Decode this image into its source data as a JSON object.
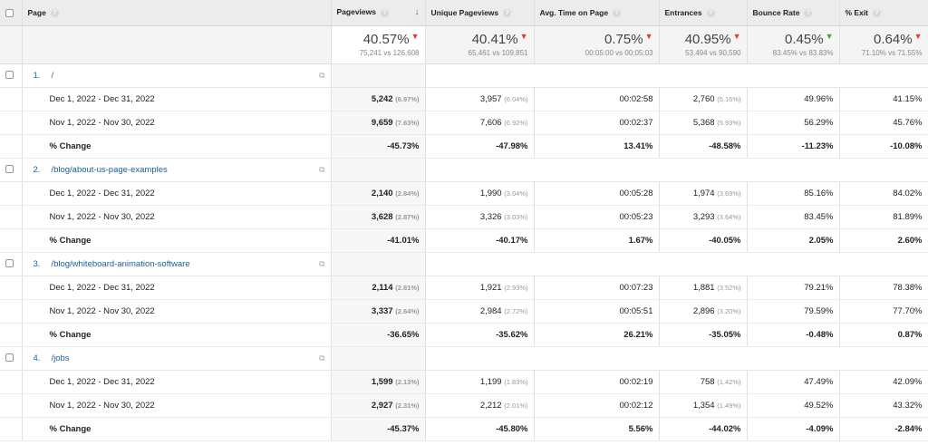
{
  "header": {
    "columns": [
      "Page",
      "Pageviews",
      "Unique Pageviews",
      "Avg. Time on Page",
      "Entrances",
      "Bounce Rate",
      "% Exit"
    ],
    "sort_column": "Pageviews",
    "sort_direction": "descending"
  },
  "summary": [
    {
      "value": "40.57%",
      "compare": "75,241 vs 126,608",
      "trend": "down",
      "color": "#e53935"
    },
    {
      "value": "40.41%",
      "compare": "65,461 vs 109,851",
      "trend": "down",
      "color": "#e53935"
    },
    {
      "value": "0.75%",
      "compare": "00:05:00 vs 00:05:03",
      "trend": "down",
      "color": "#e53935"
    },
    {
      "value": "40.95%",
      "compare": "53,494 vs 90,590",
      "trend": "down",
      "color": "#e53935"
    },
    {
      "value": "0.45%",
      "compare": "83.45% vs 83.83%",
      "trend": "down",
      "color": "#43a047"
    },
    {
      "value": "0.64%",
      "compare": "71.10% vs 71.55%",
      "trend": "down",
      "color": "#e53935"
    }
  ],
  "groups": [
    {
      "index": "1.",
      "page": "/",
      "rows": [
        {
          "label": "Dec 1, 2022 - Dec 31, 2022",
          "pv": "5,242",
          "pvp": "(6.97%)",
          "upv": "3,957",
          "upvp": "(6.04%)",
          "time": "00:02:58",
          "ent": "2,760",
          "entp": "(5.16%)",
          "bounce": "49.96%",
          "exit": "41.15%"
        },
        {
          "label": "Nov 1, 2022 - Nov 30, 2022",
          "pv": "9,659",
          "pvp": "(7.63%)",
          "upv": "7,606",
          "upvp": "(6.92%)",
          "time": "00:02:37",
          "ent": "5,368",
          "entp": "(5.93%)",
          "bounce": "56.29%",
          "exit": "45.76%"
        }
      ],
      "change": {
        "label": "% Change",
        "pv": "-45.73%",
        "upv": "-47.98%",
        "time": "13.41%",
        "ent": "-48.58%",
        "bounce": "-11.23%",
        "exit": "-10.08%"
      }
    },
    {
      "index": "2.",
      "page": "/blog/about-us-page-examples",
      "rows": [
        {
          "label": "Dec 1, 2022 - Dec 31, 2022",
          "pv": "2,140",
          "pvp": "(2.84%)",
          "upv": "1,990",
          "upvp": "(3.04%)",
          "time": "00:05:28",
          "ent": "1,974",
          "entp": "(3.69%)",
          "bounce": "85.16%",
          "exit": "84.02%"
        },
        {
          "label": "Nov 1, 2022 - Nov 30, 2022",
          "pv": "3,628",
          "pvp": "(2.87%)",
          "upv": "3,326",
          "upvp": "(3.03%)",
          "time": "00:05:23",
          "ent": "3,293",
          "entp": "(3.64%)",
          "bounce": "83.45%",
          "exit": "81.89%"
        }
      ],
      "change": {
        "label": "% Change",
        "pv": "-41.01%",
        "upv": "-40.17%",
        "time": "1.67%",
        "ent": "-40.05%",
        "bounce": "2.05%",
        "exit": "2.60%"
      }
    },
    {
      "index": "3.",
      "page": "/blog/whiteboard-animation-software",
      "rows": [
        {
          "label": "Dec 1, 2022 - Dec 31, 2022",
          "pv": "2,114",
          "pvp": "(2.81%)",
          "upv": "1,921",
          "upvp": "(2.93%)",
          "time": "00:07:23",
          "ent": "1,881",
          "entp": "(3.52%)",
          "bounce": "79.21%",
          "exit": "78.38%"
        },
        {
          "label": "Nov 1, 2022 - Nov 30, 2022",
          "pv": "3,337",
          "pvp": "(2.64%)",
          "upv": "2,984",
          "upvp": "(2.72%)",
          "time": "00:05:51",
          "ent": "2,896",
          "entp": "(3.20%)",
          "bounce": "79.59%",
          "exit": "77.70%"
        }
      ],
      "change": {
        "label": "% Change",
        "pv": "-36.65%",
        "upv": "-35.62%",
        "time": "26.21%",
        "ent": "-35.05%",
        "bounce": "-0.48%",
        "exit": "0.87%"
      }
    },
    {
      "index": "4.",
      "page": "/jobs",
      "rows": [
        {
          "label": "Dec 1, 2022 - Dec 31, 2022",
          "pv": "1,599",
          "pvp": "(2.13%)",
          "upv": "1,199",
          "upvp": "(1.83%)",
          "time": "00:02:19",
          "ent": "758",
          "entp": "(1.42%)",
          "bounce": "47.49%",
          "exit": "42.09%"
        },
        {
          "label": "Nov 1, 2022 - Nov 30, 2022",
          "pv": "2,927",
          "pvp": "(2.31%)",
          "upv": "2,212",
          "upvp": "(2.01%)",
          "time": "00:02:12",
          "ent": "1,354",
          "entp": "(1.49%)",
          "bounce": "49.52%",
          "exit": "43.32%"
        }
      ],
      "change": {
        "label": "% Change",
        "pv": "-45.37%",
        "upv": "-45.80%",
        "time": "5.56%",
        "ent": "-44.02%",
        "bounce": "-4.09%",
        "exit": "-2.84%"
      }
    }
  ]
}
